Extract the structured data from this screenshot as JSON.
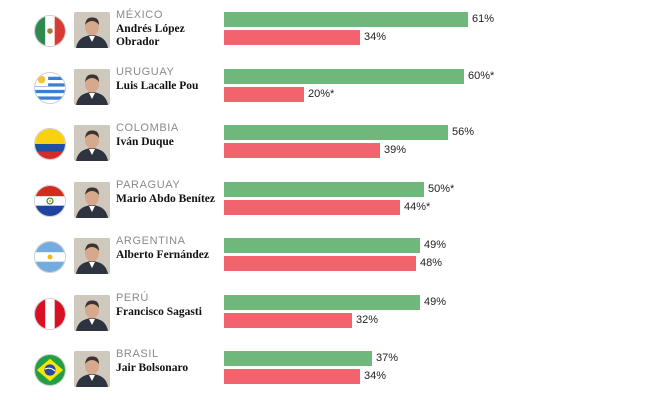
{
  "chart_data": {
    "type": "bar",
    "orientation": "horizontal",
    "colors": {
      "approve": "#6db87a",
      "disapprove": "#f2636e"
    },
    "xlim": [
      0,
      100
    ],
    "rows": [
      {
        "country": "MÉXICO",
        "leader": "Andrés López Obrador",
        "flag": "mexico-flag-icon",
        "approve": 61,
        "approve_label": "61%",
        "disapprove": 34,
        "disapprove_label": "34%"
      },
      {
        "country": "URUGUAY",
        "leader": "Luis Lacalle Pou",
        "flag": "uruguay-flag-icon",
        "approve": 60,
        "approve_label": "60%*",
        "disapprove": 20,
        "disapprove_label": "20%*"
      },
      {
        "country": "COLOMBIA",
        "leader": "Iván Duque",
        "flag": "colombia-flag-icon",
        "approve": 56,
        "approve_label": "56%",
        "disapprove": 39,
        "disapprove_label": "39%"
      },
      {
        "country": "PARAGUAY",
        "leader": "Mario Abdo Benítez",
        "flag": "paraguay-flag-icon",
        "approve": 50,
        "approve_label": "50%*",
        "disapprove": 44,
        "disapprove_label": "44%*"
      },
      {
        "country": "ARGENTINA",
        "leader": "Alberto Fernández",
        "flag": "argentina-flag-icon",
        "approve": 49,
        "approve_label": "49%",
        "disapprove": 48,
        "disapprove_label": "48%"
      },
      {
        "country": "PERÚ",
        "leader": "Francisco Sagasti",
        "flag": "peru-flag-icon",
        "approve": 49,
        "approve_label": "49%",
        "disapprove": 32,
        "disapprove_label": "32%"
      },
      {
        "country": "BRASIL",
        "leader": "Jair Bolsonaro",
        "flag": "brazil-flag-icon",
        "approve": 37,
        "approve_label": "37%",
        "disapprove": 34,
        "disapprove_label": "34%"
      }
    ]
  }
}
